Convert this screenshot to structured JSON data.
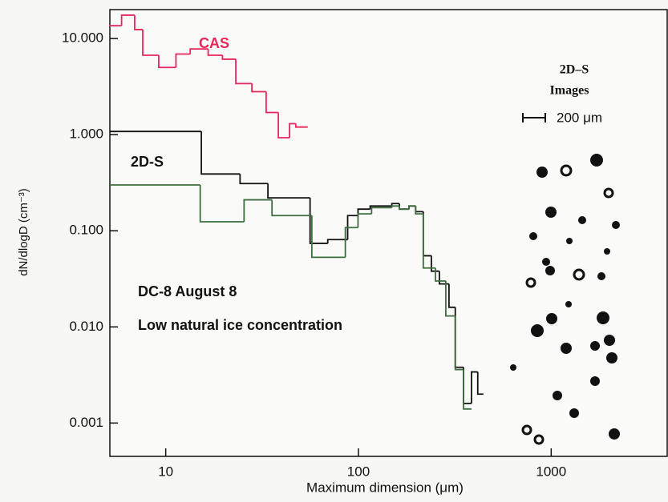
{
  "chart_data": {
    "type": "step",
    "x_label": "Maximum dimension (μm)",
    "y_label": "dN/dlogD (cm⁻³)",
    "x_log": true,
    "y_log": true,
    "xlim": [
      5.13,
      4000
    ],
    "ylim": [
      0.00045,
      20
    ],
    "xticks": [
      10,
      100,
      1000
    ],
    "yticks": [
      {
        "value": 10,
        "label": "10.000"
      },
      {
        "value": 1,
        "label": "1.000"
      },
      {
        "value": 0.1,
        "label": "0.100"
      },
      {
        "value": 0.01,
        "label": "0.010"
      },
      {
        "value": 0.001,
        "label": "0.001"
      }
    ],
    "series": [
      {
        "name": "CAS",
        "color": "#e8265a",
        "bins": [
          5.1,
          5.9,
          6.9,
          7.6,
          9.2,
          11.3,
          13.4,
          16.6,
          19.7,
          23.1,
          28,
          33.2,
          38.4,
          43.9,
          47.3,
          54.6
        ],
        "values": [
          13.6,
          17.5,
          12.4,
          6.7,
          5.0,
          6.9,
          7.8,
          6.7,
          6.1,
          3.4,
          2.8,
          1.7,
          0.93,
          1.3,
          1.2
        ]
      },
      {
        "name": "2D-S",
        "color": "#111111",
        "bins": [
          5.13,
          15.3,
          24.3,
          33.9,
          56.1,
          69.3,
          87.9,
          99.5,
          115,
          149,
          163,
          183,
          198,
          217,
          239,
          263,
          295,
          318,
          351,
          386,
          416,
          445
        ],
        "values": [
          1.08,
          0.39,
          0.31,
          0.22,
          0.074,
          0.081,
          0.144,
          0.168,
          0.181,
          0.192,
          0.168,
          0.181,
          0.158,
          0.055,
          0.038,
          0.028,
          0.016,
          0.0038,
          0.0016,
          0.0034,
          0.002
        ]
      },
      {
        "color": "#3d6e3d",
        "bins": [
          5.13,
          15.1,
          25.5,
          35.6,
          57.3,
          85.5,
          99.5,
          117,
          149,
          163,
          183,
          198,
          217,
          251,
          284,
          318,
          351,
          386
        ],
        "values": [
          0.3,
          0.124,
          0.21,
          0.144,
          0.053,
          0.108,
          0.15,
          0.174,
          0.181,
          0.168,
          0.181,
          0.15,
          0.041,
          0.03,
          0.013,
          0.0036,
          0.0014
        ]
      }
    ],
    "annotations": [
      "DC-8 August 8",
      "Low natural ice concentration",
      "2D–S",
      "Images",
      "200 μm"
    ]
  }
}
